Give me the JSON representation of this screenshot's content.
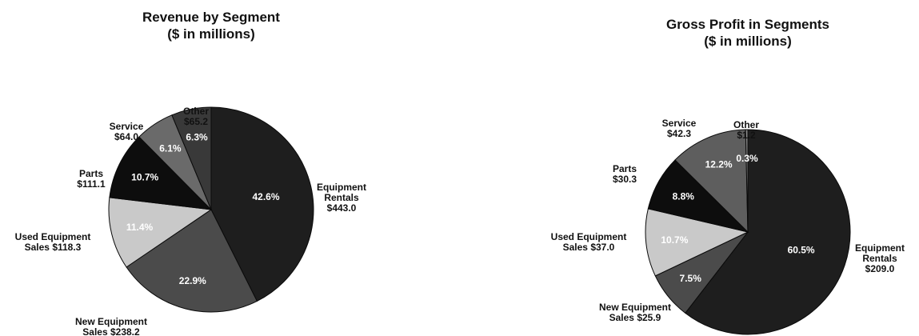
{
  "chart_data": [
    {
      "type": "pie",
      "title": "Revenue by Segment",
      "subtitle": "($ in millions)",
      "slices": [
        {
          "label_lines": [
            "Equipment",
            "Rentals",
            "$443.0"
          ],
          "value": 443.0,
          "percent": "42.6%",
          "color": "#1e1e1e",
          "text_color": "#ffffff"
        },
        {
          "label_lines": [
            "New Equipment",
            "Sales $238.2"
          ],
          "value": 238.2,
          "percent": "22.9%",
          "color": "#4b4b4b",
          "text_color": "#ffffff"
        },
        {
          "label_lines": [
            "Used Equipment",
            "Sales $118.3"
          ],
          "value": 118.3,
          "percent": "11.4%",
          "color": "#c9c9c9",
          "text_color": "#ffffff"
        },
        {
          "label_lines": [
            "Parts",
            "$111.1"
          ],
          "value": 111.1,
          "percent": "10.7%",
          "color": "#0d0d0d",
          "text_color": "#ffffff"
        },
        {
          "label_lines": [
            "Service",
            "$64.0"
          ],
          "value": 64.0,
          "percent": "6.1%",
          "color": "#6a6a6a",
          "text_color": "#ffffff"
        },
        {
          "label_lines": [
            "Other",
            "$65.2"
          ],
          "value": 65.2,
          "percent": "6.3%",
          "color": "#393939",
          "text_color": "#ffffff"
        }
      ]
    },
    {
      "type": "pie",
      "title": "Gross Profit in Segments",
      "subtitle": "($ in millions)",
      "slices": [
        {
          "label_lines": [
            "Equipment",
            "Rentals",
            "$209.0"
          ],
          "value": 209.0,
          "percent": "60.5%",
          "color": "#1e1e1e",
          "text_color": "#ffffff"
        },
        {
          "label_lines": [
            "New Equipment",
            "Sales $25.9"
          ],
          "value": 25.9,
          "percent": "7.5%",
          "color": "#4b4b4b",
          "text_color": "#ffffff"
        },
        {
          "label_lines": [
            "Used Equipment",
            "Sales $37.0"
          ],
          "value": 37.0,
          "percent": "10.7%",
          "color": "#c9c9c9",
          "text_color": "#ffffff"
        },
        {
          "label_lines": [
            "Parts",
            "$30.3"
          ],
          "value": 30.3,
          "percent": "8.8%",
          "color": "#0d0d0d",
          "text_color": "#ffffff"
        },
        {
          "label_lines": [
            "Service",
            "$42.3"
          ],
          "value": 42.3,
          "percent": "12.2%",
          "color": "#5e5e5e",
          "text_color": "#ffffff"
        },
        {
          "label_lines": [
            "Other",
            "$1.2"
          ],
          "value": 1.2,
          "percent": "0.3%",
          "color": "#8a8a8a",
          "text_color": "#ffffff"
        }
      ]
    }
  ]
}
